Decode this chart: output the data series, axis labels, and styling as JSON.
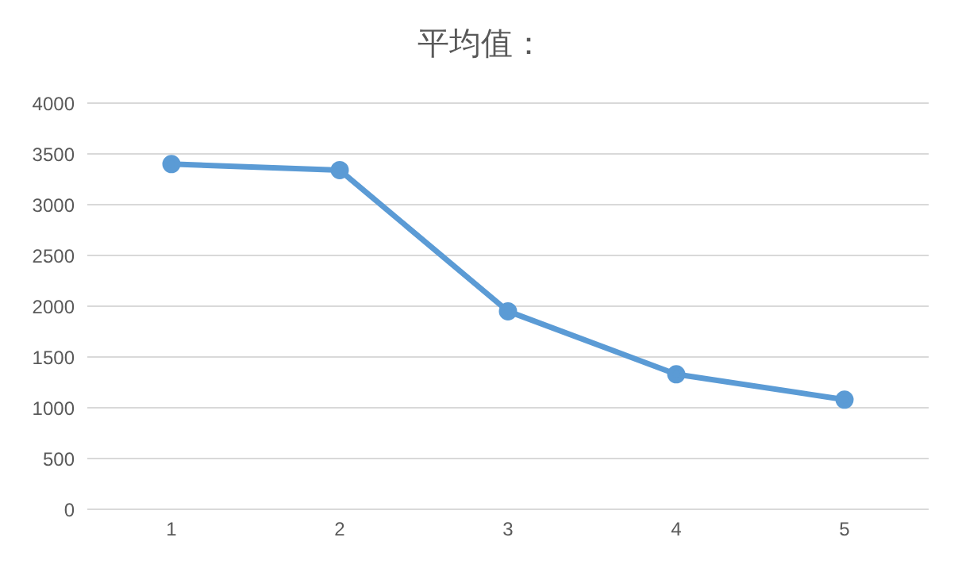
{
  "chart_data": {
    "type": "line",
    "title": "平均值：",
    "categories": [
      "1",
      "2",
      "3",
      "4",
      "5"
    ],
    "series": [
      {
        "color": "#5b9bd5",
        "values": [
          3400,
          3340,
          1950,
          1330,
          1080
        ]
      }
    ],
    "ylim": [
      0,
      4000
    ],
    "yticks": [
      0,
      500,
      1000,
      1500,
      2000,
      2500,
      3000,
      3500,
      4000
    ],
    "grid": "y",
    "legend": false,
    "marker": "circle",
    "line_style": "solid"
  }
}
